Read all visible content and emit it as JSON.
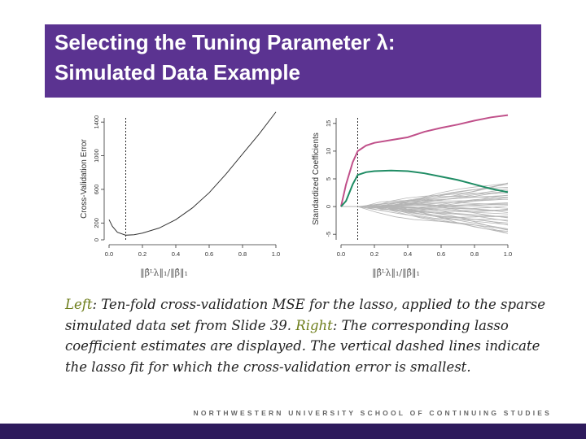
{
  "slide": {
    "title_line_1": "Selecting the Tuning Parameter λ:",
    "title_line_2": "Simulated Data Example",
    "footer": "NORTHWESTERN UNIVERSITY SCHOOL OF CONTINUING STUDIES",
    "colors": {
      "title_bar": "#5b3391",
      "footer_bar": "#2e1a5c",
      "caption_label": "#6d7d1a",
      "pink_line": "#c0508a",
      "green_line": "#1f8c64",
      "gray_lines": "#b5b5b5"
    }
  },
  "caption": {
    "left_label": "Left",
    "part1": ": Ten-fold cross-validation MSE for the lasso, applied to the sparse simulated data set from Slide 39.",
    "right_label": "Right",
    "part2": ": The corresponding lasso coefficient estimates are displayed. The vertical dashed lines indicate the lasso fit for which the cross-validation error is smallest."
  },
  "chart_data": [
    {
      "type": "line",
      "ylabel": "Cross-Validation Error",
      "xlabel": "‖β̂ᴸλ‖₁/‖β̂‖₁",
      "xlim": [
        0,
        1
      ],
      "ylim": [
        0,
        1450
      ],
      "xticks": [
        "0.0",
        "0.2",
        "0.4",
        "0.6",
        "0.8",
        "1.0"
      ],
      "yticks": [
        "0",
        "200",
        "600",
        "1000",
        "1400"
      ],
      "ytick_values": [
        0,
        200,
        600,
        1000,
        1400
      ],
      "dashed_vline_x": 0.1,
      "series": [
        {
          "x": [
            0.0,
            0.02,
            0.05,
            0.1,
            0.15,
            0.2,
            0.3,
            0.4,
            0.5,
            0.6,
            0.7,
            0.8,
            0.9,
            1.0
          ],
          "y": [
            240,
            160,
            90,
            55,
            60,
            80,
            140,
            240,
            380,
            560,
            780,
            1020,
            1260,
            1520
          ]
        }
      ]
    },
    {
      "type": "line",
      "ylabel": "Standardized Coefficients",
      "xlabel": "‖β̂ᴸλ‖₁/‖β̂‖₁",
      "xlim": [
        0,
        1
      ],
      "ylim": [
        -6,
        16
      ],
      "xticks": [
        "0.0",
        "0.2",
        "0.4",
        "0.6",
        "0.8",
        "1.0"
      ],
      "yticks": [
        "-5",
        "0",
        "5",
        "10",
        "15"
      ],
      "ytick_values": [
        -5,
        0,
        5,
        10,
        15
      ],
      "dashed_vline_x": 0.1,
      "series": [
        {
          "x": [
            0.0,
            0.03,
            0.07,
            0.1,
            0.15,
            0.2,
            0.3,
            0.4,
            0.5,
            0.6,
            0.7,
            0.8,
            0.9,
            1.0
          ],
          "y": [
            0,
            4,
            8,
            10,
            11,
            11.5,
            12,
            12.5,
            13.5,
            14.2,
            14.8,
            15.5,
            16.1,
            16.5
          ]
        },
        {
          "x": [
            0.0,
            0.03,
            0.07,
            0.1,
            0.15,
            0.2,
            0.3,
            0.4,
            0.5,
            0.6,
            0.7,
            0.8,
            0.9,
            1.0
          ],
          "y": [
            0,
            1,
            4,
            5.7,
            6.2,
            6.4,
            6.5,
            6.4,
            6.0,
            5.4,
            4.8,
            4.0,
            3.2,
            2.6
          ]
        }
      ],
      "gray_series_count": 40,
      "gray_series_end_range": [
        -5,
        4.5
      ]
    }
  ]
}
